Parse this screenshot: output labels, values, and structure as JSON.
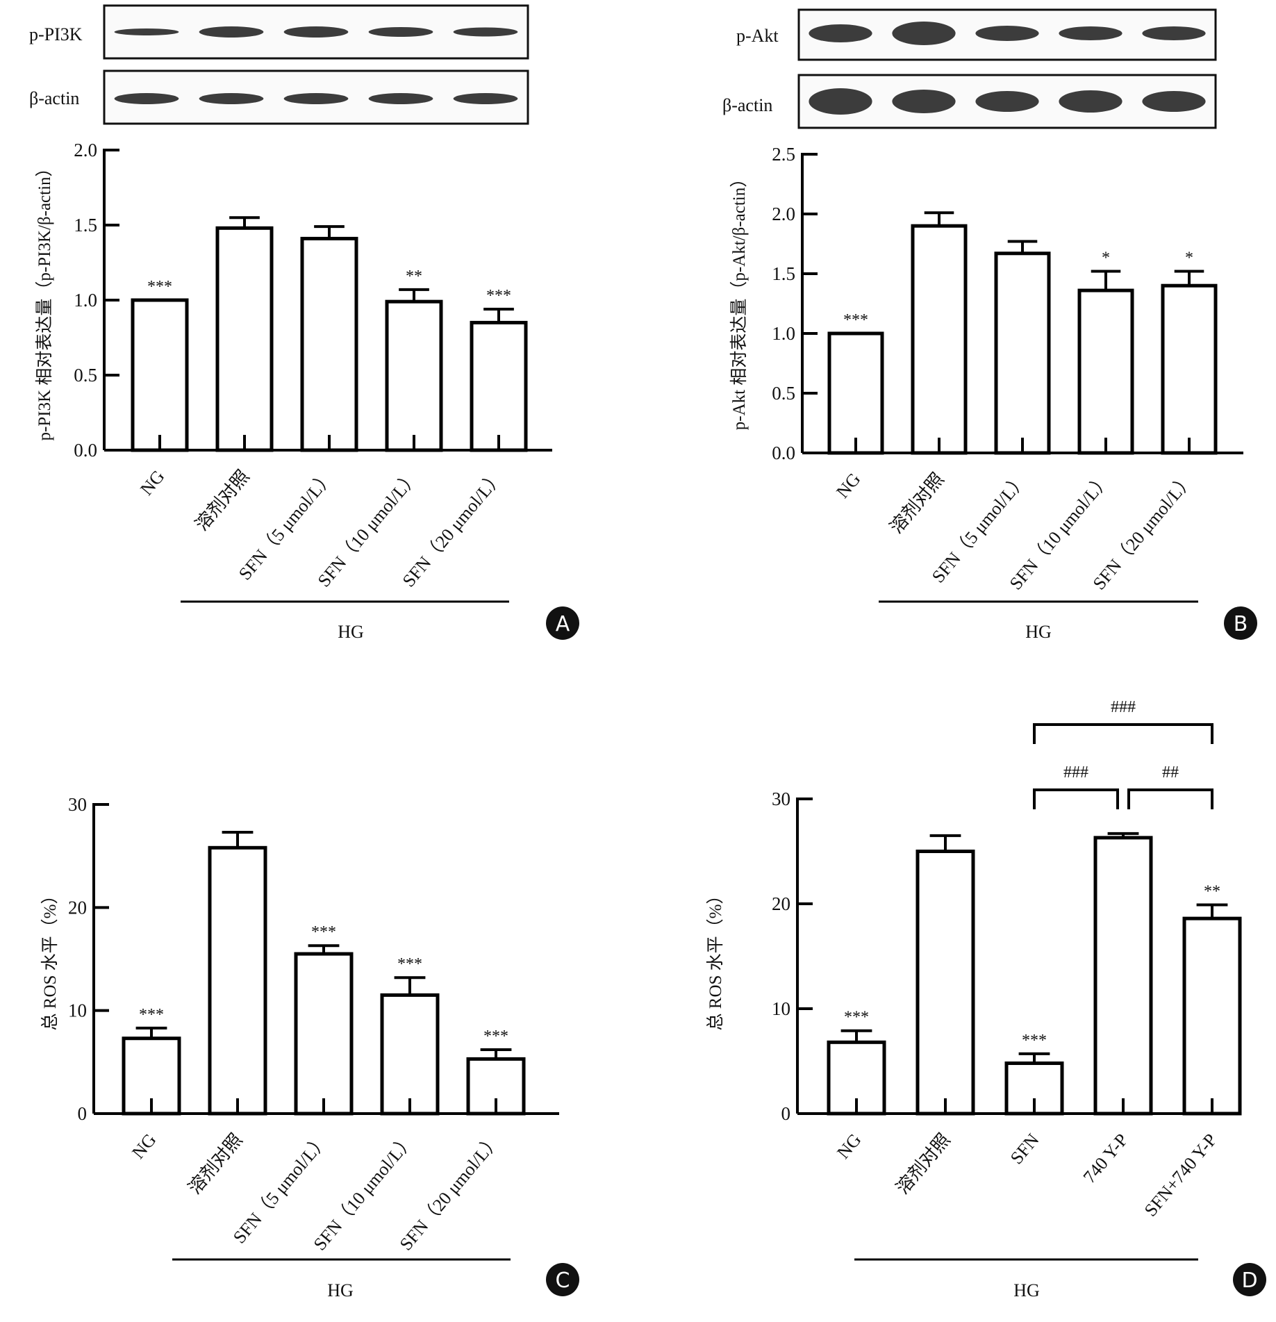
{
  "panels": [
    {
      "id": "A",
      "blots": [
        {
          "label": "p-PI3K",
          "bands": 5
        },
        {
          "label": "β-actin",
          "bands": 5
        }
      ]
    },
    {
      "id": "B",
      "blots": [
        {
          "label": "p-Akt",
          "bands": 5
        },
        {
          "label": "β-actin",
          "bands": 5
        }
      ]
    },
    {
      "id": "C",
      "blots": []
    },
    {
      "id": "D",
      "blots": []
    }
  ],
  "chart_data": [
    {
      "panel": "A",
      "type": "bar",
      "ylabel": "p-PI3K 相对表达量（p-PI3K/β-actin）",
      "xlabel": "",
      "categories": [
        "NG",
        "溶剂对照",
        "SFN（5 μmol/L）",
        "SFN（10 μmol/L）",
        "SFN（20 μmol/L）"
      ],
      "values": [
        1.0,
        1.48,
        1.41,
        0.99,
        0.85
      ],
      "errors": [
        0,
        0.07,
        0.08,
        0.08,
        0.09
      ],
      "significance": [
        "***",
        "",
        "",
        "**",
        "***"
      ],
      "yticks": [
        "0.0",
        "0.5",
        "1.0",
        "1.5",
        "2.0"
      ],
      "ylim": [
        0,
        2.0
      ],
      "group_label": "HG",
      "group_span": [
        1,
        4
      ]
    },
    {
      "panel": "B",
      "type": "bar",
      "ylabel": "p-Akt 相对表达量（p-Akt/β-actin）",
      "xlabel": "",
      "categories": [
        "NG",
        "溶剂对照",
        "SFN（5 μmol/L）",
        "SFN（10 μmol/L）",
        "SFN（20 μmol/L）"
      ],
      "values": [
        1.0,
        1.9,
        1.67,
        1.36,
        1.4
      ],
      "errors": [
        0,
        0.11,
        0.1,
        0.16,
        0.12
      ],
      "significance": [
        "***",
        "",
        "",
        "*",
        "*"
      ],
      "yticks": [
        "0.0",
        "0.5",
        "1.0",
        "1.5",
        "2.0",
        "2.5"
      ],
      "ylim": [
        0,
        2.5
      ],
      "group_label": "HG",
      "group_span": [
        1,
        4
      ]
    },
    {
      "panel": "C",
      "type": "bar",
      "ylabel": "总 ROS 水平（%）",
      "xlabel": "",
      "categories": [
        "NG",
        "溶剂对照",
        "SFN（5 μmol/L）",
        "SFN（10 μmol/L）",
        "SFN（20 μmol/L）"
      ],
      "values": [
        7.3,
        25.8,
        15.5,
        11.5,
        5.3
      ],
      "errors": [
        1.0,
        1.5,
        0.8,
        1.7,
        0.9
      ],
      "significance": [
        "***",
        "",
        "***",
        "***",
        "***"
      ],
      "yticks": [
        "0",
        "10",
        "20",
        "30"
      ],
      "ylim": [
        0,
        30
      ],
      "group_label": "HG",
      "group_span": [
        1,
        4
      ]
    },
    {
      "panel": "D",
      "type": "bar",
      "ylabel": "总 ROS 水平（%）",
      "xlabel": "",
      "categories": [
        "NG",
        "溶剂对照",
        "SFN",
        "740 Y-P",
        "SFN+740 Y-P"
      ],
      "values": [
        6.8,
        25.0,
        4.8,
        26.3,
        18.6
      ],
      "errors": [
        1.1,
        1.5,
        0.9,
        0.4,
        1.3
      ],
      "significance": [
        "***",
        "",
        "***",
        "",
        "**"
      ],
      "yticks": [
        "0",
        "10",
        "20",
        "30"
      ],
      "ylim": [
        0,
        30
      ],
      "group_label": "HG",
      "group_span": [
        0,
        4
      ],
      "comparisons": [
        {
          "from": 2,
          "to": 3,
          "label": "###",
          "level": 1
        },
        {
          "from": 3,
          "to": 4,
          "label": "##",
          "level": 1
        },
        {
          "from": 2,
          "to": 4,
          "label": "###",
          "level": 2
        }
      ]
    }
  ]
}
